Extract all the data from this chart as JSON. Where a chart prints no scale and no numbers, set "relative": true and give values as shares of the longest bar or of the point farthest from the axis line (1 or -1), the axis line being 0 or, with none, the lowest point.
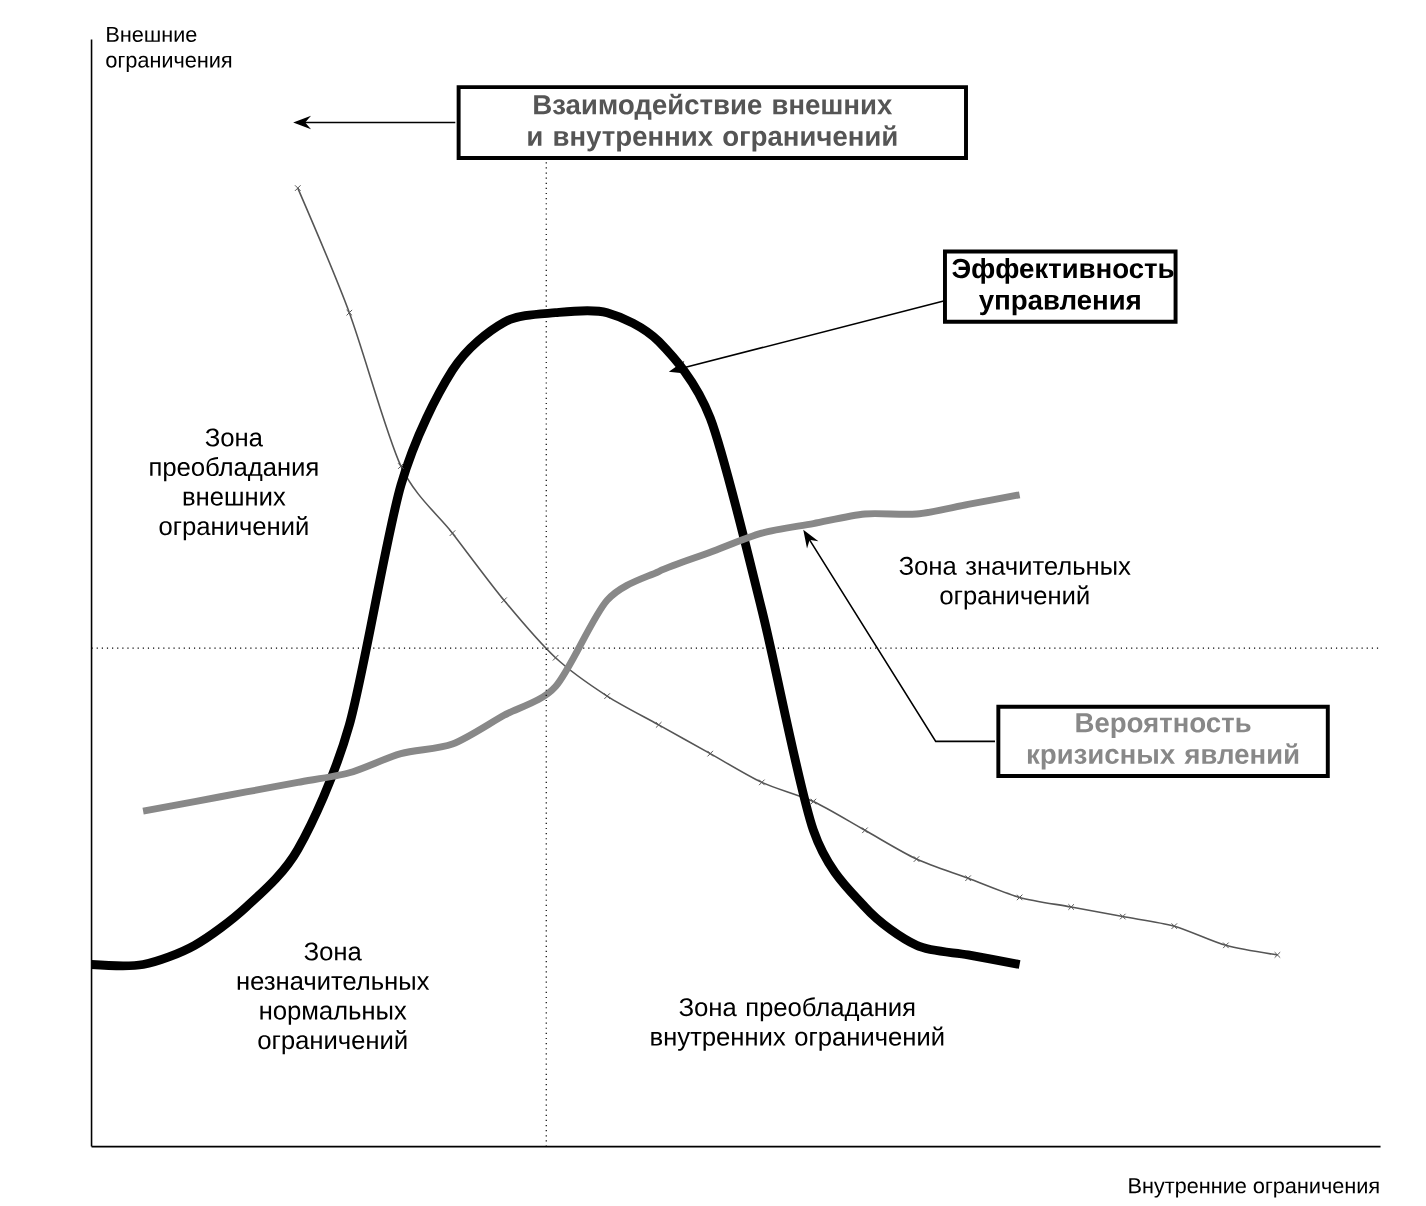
{
  "chart_data": {
    "type": "line",
    "relative": true,
    "xlabel": "Внутренние ограничения",
    "categories": [
      null,
      null,
      null,
      null,
      null,
      null,
      null,
      null,
      null,
      null,
      null,
      null,
      null,
      null,
      null,
      null,
      null,
      null,
      null,
      null,
      null,
      null,
      null,
      null,
      null,
      null
    ],
    "series": [
      {
        "name": "Взаимодействие внешних и внутренних ограничений",
        "color": "#555555",
        "marker": "cross",
        "values": [
          null,
          null,
          null,
          null,
          1.0,
          0.87,
          0.71,
          0.64,
          0.57,
          0.51,
          0.47,
          0.44,
          0.41,
          0.38,
          0.36,
          0.33,
          0.3,
          0.28,
          0.26,
          0.25,
          0.24,
          0.23,
          0.21,
          0.2,
          null,
          null
        ]
      },
      {
        "name": "Эффективность управления",
        "color": "#000000",
        "values": [
          0.19,
          0.19,
          0.21,
          0.25,
          0.31,
          0.44,
          0.69,
          0.81,
          0.86,
          0.87,
          0.87,
          0.84,
          0.76,
          0.56,
          0.33,
          0.25,
          0.21,
          0.2,
          0.19,
          null,
          null,
          null,
          null,
          null,
          null,
          null
        ]
      },
      {
        "name": "Вероятность кризисных явлений",
        "color": "#888888",
        "values": [
          null,
          0.35,
          0.36,
          0.37,
          0.38,
          0.39,
          0.41,
          0.42,
          0.45,
          0.48,
          0.57,
          0.6,
          0.62,
          0.64,
          0.65,
          0.66,
          0.66,
          0.67,
          0.68,
          null,
          null,
          null,
          null,
          null,
          null,
          null
        ]
      }
    ],
    "ref_lines": [
      {
        "axis": "y",
        "value": 0.52,
        "line_style": "dotted"
      }
    ],
    "annotations": [
      "Внешние ограничения",
      "Зона преобладания внешних ограничений",
      "Зона значительных ограничений",
      "Зона незначительных нормальных ограничений",
      "Зона преобладания внутренних ограничений"
    ]
  }
}
